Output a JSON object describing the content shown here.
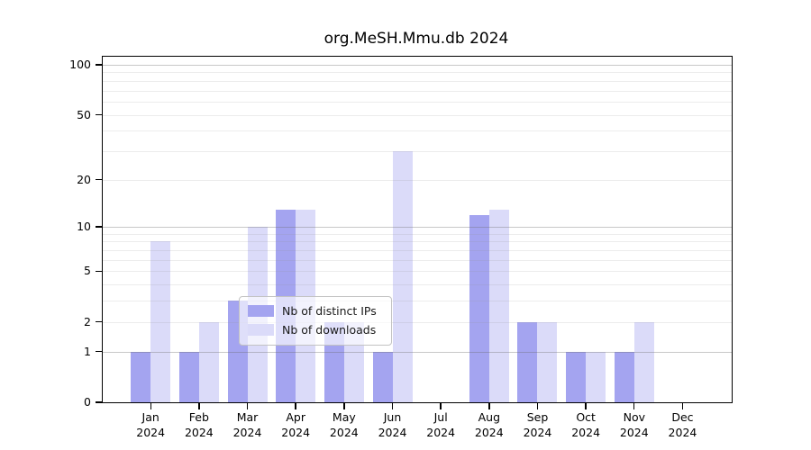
{
  "title": "org.MeSH.Mmu.db 2024",
  "chart_data": {
    "type": "bar",
    "title": "org.MeSH.Mmu.db 2024",
    "categories": [
      "Jan 2024",
      "Feb 2024",
      "Mar 2024",
      "Apr 2024",
      "May 2024",
      "Jun 2024",
      "Jul 2024",
      "Aug 2024",
      "Sep 2024",
      "Oct 2024",
      "Nov 2024",
      "Dec 2024"
    ],
    "series": [
      {
        "name": "Nb of distinct IPs",
        "color": "#a4a4f0",
        "values": [
          1,
          1,
          3,
          13,
          2,
          1,
          0,
          12,
          2,
          1,
          1,
          0
        ]
      },
      {
        "name": "Nb of downloads",
        "color": "#dbdbf9",
        "values": [
          8,
          2,
          10,
          13,
          2,
          30,
          0,
          13,
          2,
          1,
          2,
          0
        ]
      }
    ],
    "xlabel": "",
    "ylabel": "",
    "yscale": "log1p",
    "ylim": [
      0,
      110
    ],
    "y_ticks": [
      0,
      1,
      2,
      5,
      10,
      20,
      50,
      100
    ],
    "grid_major": [
      1,
      10,
      100
    ],
    "grid_minor": [
      2,
      3,
      4,
      5,
      6,
      7,
      8,
      9,
      20,
      30,
      40,
      50,
      60,
      70,
      80,
      90
    ],
    "legend_position": "bottom-center",
    "grid": "on"
  },
  "colors": {
    "frame": "#000000",
    "major_grid": "#c0c0c0",
    "minor_grid": "#e9e9e9",
    "background": "#ffffff"
  }
}
